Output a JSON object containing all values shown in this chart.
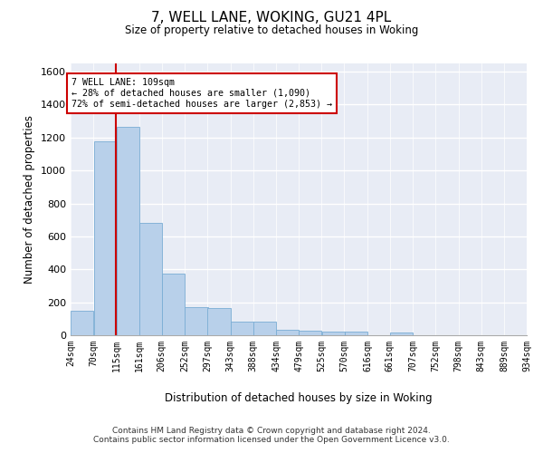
{
  "title": "7, WELL LANE, WOKING, GU21 4PL",
  "subtitle": "Size of property relative to detached houses in Woking",
  "xlabel": "Distribution of detached houses by size in Woking",
  "ylabel": "Number of detached properties",
  "bar_color": "#b8d0ea",
  "bar_edge_color": "#7aadd4",
  "background_color": "#e8ecf5",
  "grid_color": "#ffffff",
  "vline_color": "#cc0000",
  "vline_x": 115,
  "annotation_text": "7 WELL LANE: 109sqm\n← 28% of detached houses are smaller (1,090)\n72% of semi-detached houses are larger (2,853) →",
  "annotation_box_color": "#ffffff",
  "annotation_box_edge_color": "#cc0000",
  "footer_text": "Contains HM Land Registry data © Crown copyright and database right 2024.\nContains public sector information licensed under the Open Government Licence v3.0.",
  "bin_edges": [
    24,
    70,
    115,
    161,
    206,
    252,
    297,
    343,
    388,
    434,
    479,
    525,
    570,
    616,
    661,
    707,
    752,
    798,
    843,
    889,
    934
  ],
  "bin_labels": [
    "24sqm",
    "70sqm",
    "115sqm",
    "161sqm",
    "206sqm",
    "252sqm",
    "297sqm",
    "343sqm",
    "388sqm",
    "434sqm",
    "479sqm",
    "525sqm",
    "570sqm",
    "616sqm",
    "661sqm",
    "707sqm",
    "752sqm",
    "798sqm",
    "843sqm",
    "889sqm",
    "934sqm"
  ],
  "bar_heights": [
    148,
    1175,
    1265,
    683,
    375,
    170,
    165,
    83,
    85,
    35,
    30,
    22,
    22,
    0,
    17,
    0,
    0,
    0,
    0,
    0
  ],
  "ylim": [
    0,
    1650
  ],
  "yticks": [
    0,
    200,
    400,
    600,
    800,
    1000,
    1200,
    1400,
    1600
  ]
}
